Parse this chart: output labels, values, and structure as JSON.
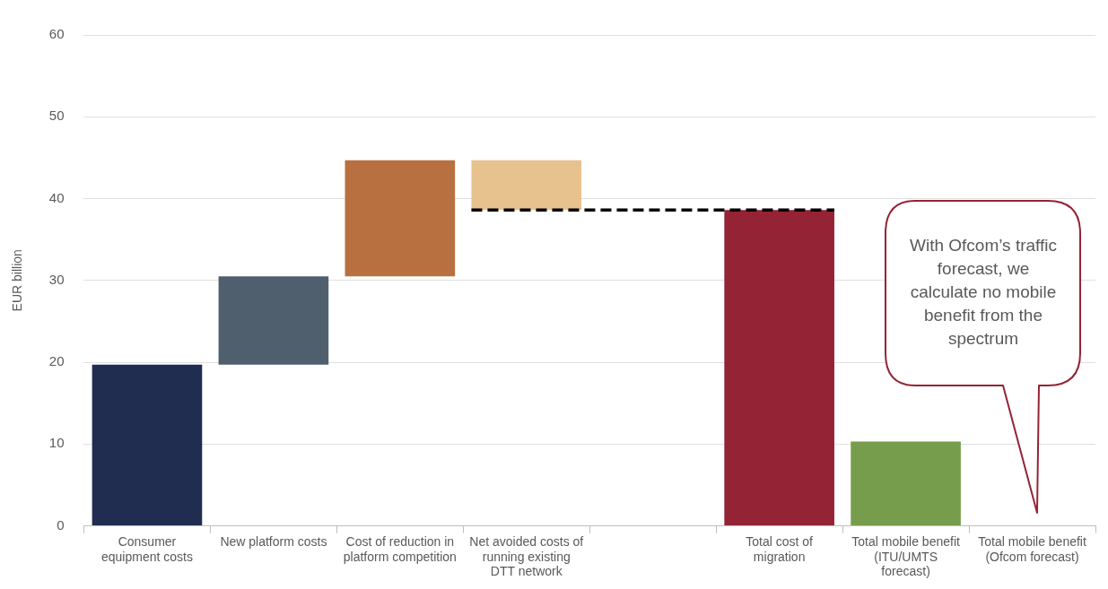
{
  "chart_data": {
    "type": "bar",
    "ylabel": "EUR billion",
    "categories": [
      "Consumer equipment costs",
      "New platform costs",
      "Cost of reduction in platform competition",
      "Net avoided costs of running existing DTT network",
      null,
      "Total cost of migration",
      "Total mobile benefit (ITU/UMTS forecast)",
      "Total mobile benefit (Ofcom forecast)"
    ],
    "values": [
      19.7,
      10.8,
      14.2,
      6.1,
      null,
      38.6,
      10.3,
      null
    ],
    "base": [
      0,
      19.7,
      30.5,
      38.6,
      null,
      0,
      0,
      null
    ],
    "colors": [
      "#202d50",
      "#4f5f6e",
      "#b87040",
      "#e8c28e",
      null,
      "#942335",
      "#769d4b",
      null
    ],
    "ylim": [
      0,
      60
    ],
    "yticks": [
      0,
      10,
      20,
      30,
      40,
      50,
      60
    ],
    "grid": "y",
    "legend": false,
    "ref_lines": [
      {
        "axis": "y",
        "value": 38.6,
        "color": "#000000",
        "line_style": "dashed"
      }
    ],
    "annotations": [
      "With Ofcom’s traffic forecast, we calculate no mobile benefit from the spectrum"
    ]
  }
}
